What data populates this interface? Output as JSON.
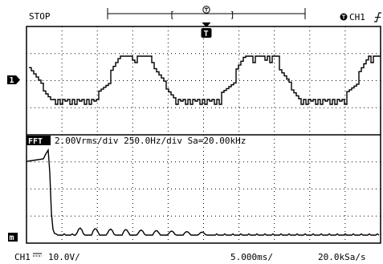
{
  "status": {
    "run_state": "STOP"
  },
  "trigger": {
    "source_label": "CH1",
    "marker_label": "T",
    "slope_icon": "rising-edge-icon"
  },
  "upper_panel": {
    "channel_marker": "1"
  },
  "fft": {
    "badge": "FFT",
    "info": "2.00Vrms/div 250.0Hz/div Sa=20.00kHz",
    "marker": "m"
  },
  "footer": {
    "channel": "CH1",
    "coupling_icon": "dc-coupling-icon",
    "volts_per_div": "10.0V/",
    "time_per_div": "5.000ms/",
    "sample_rate": "20.0kSa/s"
  }
}
